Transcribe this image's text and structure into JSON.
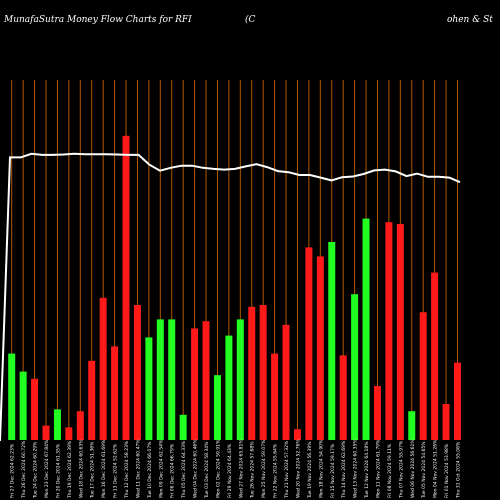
{
  "header": {
    "title": "MunafaSutra  Money Flow  Charts for RFI",
    "mid": "(C",
    "right": "ohen  & St"
  },
  "chart_data": {
    "type": "bar",
    "title": "MunafaSutra  Money Flow  Charts for RFI",
    "ylim": [
      0,
      100
    ],
    "categories": [
      "Fri 27 Dec 2024 62.23%",
      "Thu 26 Dec 2024 60.72%",
      "Tue 24 Dec 2024 60.29%",
      "Mon 23 Dec 2024 67.84%",
      "Fri 20 Dec 2024 61.35%",
      "Thu 19 Dec 2024 62.39%",
      "Wed 18 Dec 2024 60.63%",
      "Tue 17 Dec 2024 51.36%",
      "Mon 16 Dec 2024 61.69%",
      "Fri 13 Dec 2024 52.62%",
      "Thu 12 Dec 2024 58.23%",
      "Wed 11 Dec 2024 60.47%",
      "Tue 10 Dec 2024 66.07%",
      "Mon 09 Dec 2024 62.54%",
      "Fri 06 Dec 2024 66.79%",
      "Thu 05 Dec 2024 64.33%",
      "Wed 04 Dec 2024 60.46%",
      "Tue 03 Dec 2024 58.34%",
      "Mon 02 Dec 2024 59.91%",
      "Fri 29 Nov 2024 64.43%",
      "Wed 27 Nov 2024 65.81%",
      "Tue 26 Nov 2024 57.68%",
      "Mon 25 Nov 2024 59.07%",
      "Fri 22 Nov 2024 55.64%",
      "Thu 21 Nov 2024 57.32%",
      "Wed 20 Nov 2024 52.76%",
      "Tue 19 Nov 2024 56.39%",
      "Mon 18 Nov 2024 54.90%",
      "Fri 15 Nov 2024 59.17%",
      "Thu 14 Nov 2024 62.69%",
      "Wed 13 Nov 2024 60.35%",
      "Tue 12 Nov 2024 64.18%",
      "Mon 11 Nov 2024 61.79%",
      "Fri 08 Nov 2024 59.11%",
      "Thu 07 Nov 2024 55.97%",
      "Wed 06 Nov 2024 56.61%",
      "Tue 05 Nov 2024 54.65%",
      "Mon 04 Nov 2024 51.26%",
      "Fri 01 Nov 2024 53.98%",
      "Thu 31 Oct 2024 55.06%"
    ],
    "bars": [
      {
        "value": 24,
        "color": "green"
      },
      {
        "value": 19,
        "color": "green"
      },
      {
        "value": 17,
        "color": "red"
      },
      {
        "value": 4,
        "color": "red"
      },
      {
        "value": 8.5,
        "color": "green"
      },
      {
        "value": 3.5,
        "color": "red"
      },
      {
        "value": 8,
        "color": "red"
      },
      {
        "value": 22,
        "color": "red"
      },
      {
        "value": 39.5,
        "color": "red"
      },
      {
        "value": 26,
        "color": "red"
      },
      {
        "value": 84.5,
        "color": "red"
      },
      {
        "value": 37.5,
        "color": "red"
      },
      {
        "value": 28.5,
        "color": "green"
      },
      {
        "value": 33.5,
        "color": "green"
      },
      {
        "value": 33.5,
        "color": "green"
      },
      {
        "value": 7,
        "color": "green"
      },
      {
        "value": 31,
        "color": "red"
      },
      {
        "value": 33,
        "color": "red"
      },
      {
        "value": 18,
        "color": "green"
      },
      {
        "value": 29,
        "color": "green"
      },
      {
        "value": 33.5,
        "color": "green"
      },
      {
        "value": 37,
        "color": "red"
      },
      {
        "value": 37.5,
        "color": "red"
      },
      {
        "value": 24,
        "color": "red"
      },
      {
        "value": 32,
        "color": "red"
      },
      {
        "value": 3,
        "color": "red"
      },
      {
        "value": 53.5,
        "color": "red"
      },
      {
        "value": 51,
        "color": "red"
      },
      {
        "value": 55,
        "color": "green"
      },
      {
        "value": 23.5,
        "color": "red"
      },
      {
        "value": 40.5,
        "color": "green"
      },
      {
        "value": 61.5,
        "color": "green"
      },
      {
        "value": 15,
        "color": "red"
      },
      {
        "value": 60.5,
        "color": "red"
      },
      {
        "value": 60,
        "color": "red"
      },
      {
        "value": 8,
        "color": "green"
      },
      {
        "value": 35.5,
        "color": "red"
      },
      {
        "value": 46.5,
        "color": "red"
      },
      {
        "value": 10,
        "color": "red"
      },
      {
        "value": 21.5,
        "color": "red"
      }
    ],
    "line": [
      78.5,
      78.5,
      79.5,
      79.2,
      79.2,
      79.3,
      79.5,
      79.4,
      79.4,
      79.4,
      79.3,
      79.2,
      79.2,
      76.5,
      74.8,
      75.6,
      76.2,
      76.2,
      75.6,
      75.3,
      75.1,
      75.3,
      76,
      76.6,
      75.8,
      74.7,
      74.4,
      73.6,
      73.6,
      72.9,
      72.1,
      73,
      73.2,
      73.9,
      74.9,
      75.1,
      74.6,
      73.3,
      74,
      73.1,
      73.1,
      72.9,
      71.6
    ],
    "colors": {
      "background": "#000000",
      "green_bar": "#22ff22",
      "red_bar": "#ff1a1a",
      "gridline": "#b35a00",
      "line": "#ffffff",
      "label": "#ffffff"
    }
  }
}
